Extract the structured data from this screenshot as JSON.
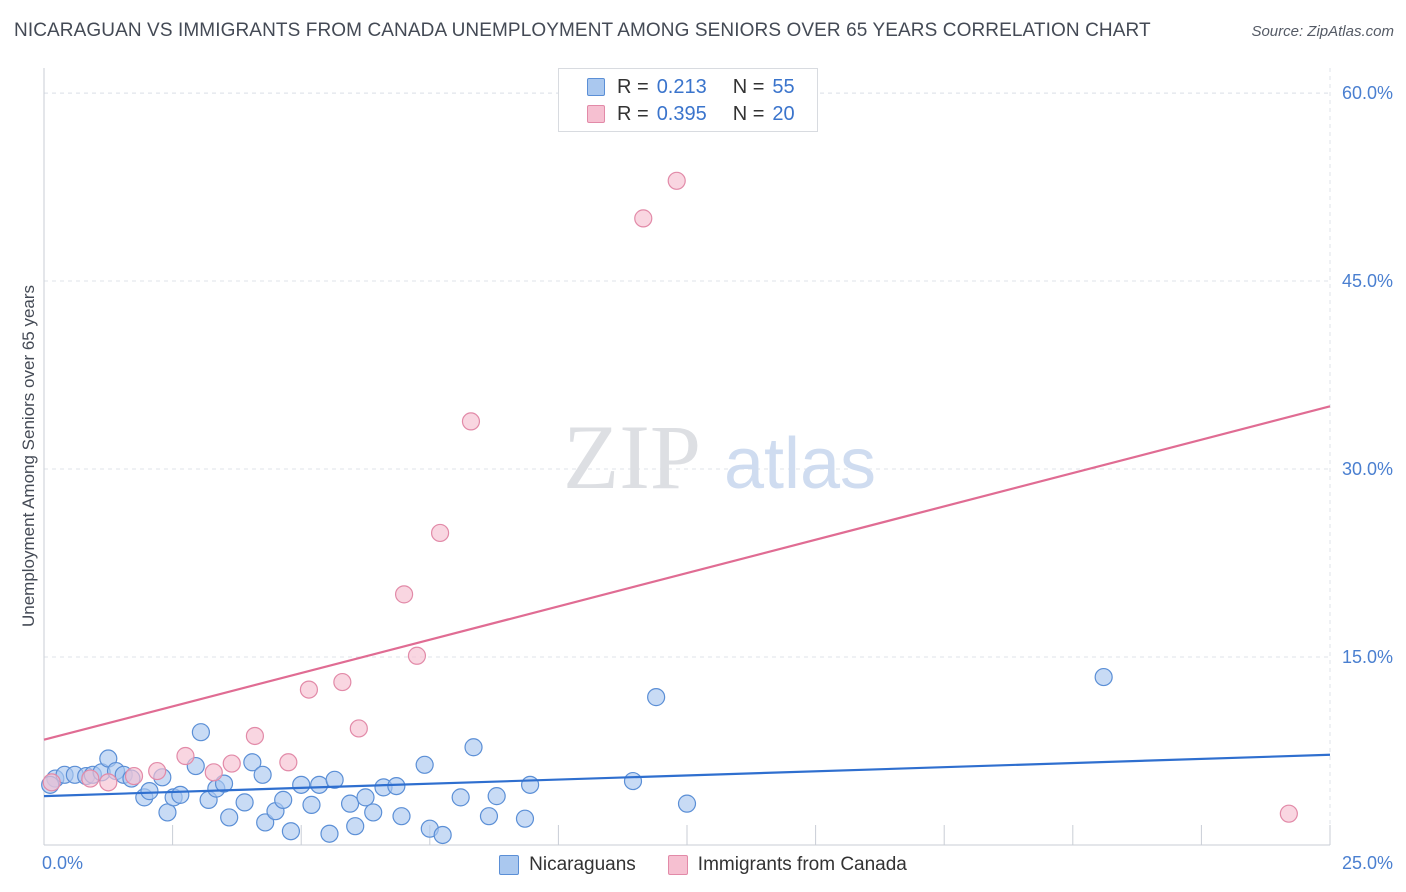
{
  "header": {
    "title": "NICARAGUAN VS IMMIGRANTS FROM CANADA UNEMPLOYMENT AMONG SENIORS OVER 65 YEARS CORRELATION CHART",
    "source": "Source: ZipAtlas.com"
  },
  "watermark": {
    "zip": "ZIP",
    "atlas": "atlas"
  },
  "legend": {
    "series": [
      {
        "r_label": "R =",
        "r_value": "0.213",
        "n_label": "N =",
        "n_value": "55"
      },
      {
        "r_label": "R =",
        "r_value": "0.395",
        "n_label": "N =",
        "n_value": "20"
      }
    ]
  },
  "bottom_legend": {
    "items": [
      "Nicaraguans",
      "Immigrants from Canada"
    ]
  },
  "colors": {
    "blue_fill": "#aac8ef",
    "blue_stroke": "#5b8fd6",
    "blue_line": "#2f6fcf",
    "pink_fill": "#f6c0d1",
    "pink_stroke": "#e28aa8",
    "pink_line": "#e06c93",
    "grid": "#dfe3ea",
    "tick_label": "#4a7fd0"
  },
  "chart_data": {
    "type": "scatter",
    "title": "NICARAGUAN VS IMMIGRANTS FROM CANADA UNEMPLOYMENT AMONG SENIORS OVER 65 YEARS CORRELATION CHART",
    "xlabel": "",
    "ylabel": "Unemployment Among Seniors over 65 years",
    "xlim": [
      0,
      25
    ],
    "ylim": [
      0,
      62
    ],
    "x_tick_labels": [
      {
        "value": 0,
        "label": "0.0%"
      },
      {
        "value": 25,
        "label": "25.0%"
      }
    ],
    "y_ticks": [
      {
        "value": 15,
        "label": "15.0%"
      },
      {
        "value": 30,
        "label": "30.0%"
      },
      {
        "value": 45,
        "label": "45.0%"
      },
      {
        "value": 60,
        "label": "60.0%"
      }
    ],
    "series": [
      {
        "name": "Nicaraguans",
        "color": "blue",
        "points": [
          [
            0.22,
            5.3
          ],
          [
            0.4,
            5.6
          ],
          [
            0.6,
            5.6
          ],
          [
            0.82,
            5.5
          ],
          [
            0.95,
            5.6
          ],
          [
            1.12,
            5.8
          ],
          [
            1.25,
            6.9
          ],
          [
            1.4,
            5.9
          ],
          [
            1.55,
            5.6
          ],
          [
            1.7,
            5.3
          ],
          [
            1.95,
            3.8
          ],
          [
            2.05,
            4.3
          ],
          [
            2.3,
            5.4
          ],
          [
            2.4,
            2.6
          ],
          [
            2.52,
            3.8
          ],
          [
            2.65,
            4.0
          ],
          [
            3.05,
            9.0
          ],
          [
            3.2,
            3.6
          ],
          [
            2.95,
            6.3
          ],
          [
            3.35,
            4.5
          ],
          [
            3.5,
            4.9
          ],
          [
            3.6,
            2.2
          ],
          [
            3.9,
            3.4
          ],
          [
            4.05,
            6.6
          ],
          [
            4.25,
            5.6
          ],
          [
            4.3,
            1.8
          ],
          [
            4.5,
            2.7
          ],
          [
            4.65,
            3.6
          ],
          [
            4.8,
            1.1
          ],
          [
            5.0,
            4.8
          ],
          [
            5.2,
            3.2
          ],
          [
            5.35,
            4.8
          ],
          [
            5.55,
            0.9
          ],
          [
            5.65,
            5.2
          ],
          [
            5.95,
            3.3
          ],
          [
            6.05,
            1.5
          ],
          [
            6.25,
            3.8
          ],
          [
            6.4,
            2.6
          ],
          [
            6.6,
            4.6
          ],
          [
            6.85,
            4.7
          ],
          [
            6.95,
            2.3
          ],
          [
            7.4,
            6.4
          ],
          [
            7.5,
            1.3
          ],
          [
            7.75,
            0.8
          ],
          [
            8.1,
            3.8
          ],
          [
            8.35,
            7.8
          ],
          [
            8.65,
            2.3
          ],
          [
            8.8,
            3.9
          ],
          [
            9.35,
            2.1
          ],
          [
            9.45,
            4.8
          ],
          [
            11.45,
            5.1
          ],
          [
            11.9,
            11.8
          ],
          [
            12.5,
            3.3
          ],
          [
            20.6,
            13.4
          ],
          [
            0.12,
            4.8
          ]
        ],
        "trend": {
          "x": [
            0,
            25
          ],
          "y": [
            3.9,
            7.2
          ]
        }
      },
      {
        "name": "Immigrants from Canada",
        "color": "pink",
        "points": [
          [
            0.15,
            5.0
          ],
          [
            0.9,
            5.3
          ],
          [
            1.25,
            5.0
          ],
          [
            1.75,
            5.5
          ],
          [
            2.2,
            5.9
          ],
          [
            2.75,
            7.1
          ],
          [
            3.3,
            5.8
          ],
          [
            3.65,
            6.5
          ],
          [
            4.1,
            8.7
          ],
          [
            4.75,
            6.6
          ],
          [
            5.15,
            12.4
          ],
          [
            5.8,
            13.0
          ],
          [
            6.12,
            9.3
          ],
          [
            7.0,
            20.0
          ],
          [
            7.25,
            15.1
          ],
          [
            7.7,
            24.9
          ],
          [
            8.3,
            33.8
          ],
          [
            11.65,
            50.0
          ],
          [
            12.3,
            53.0
          ],
          [
            24.2,
            2.5
          ]
        ],
        "trend": {
          "x": [
            0,
            25
          ],
          "y": [
            8.4,
            35.0
          ]
        }
      }
    ]
  }
}
